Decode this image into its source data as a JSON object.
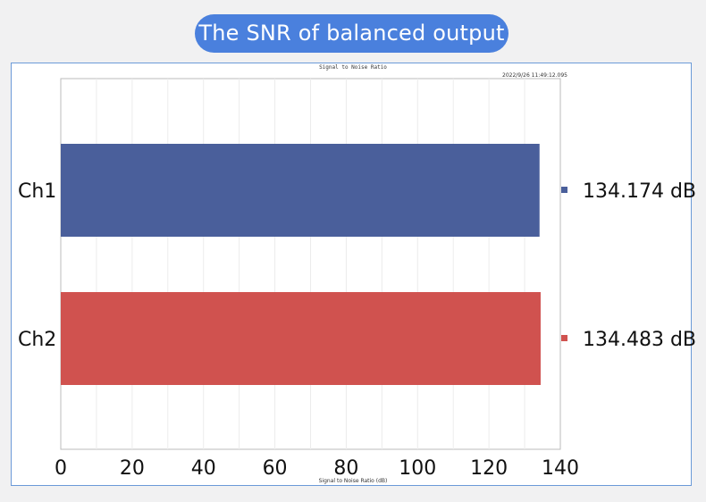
{
  "header": {
    "title": "The SNR of balanced output"
  },
  "chart_data": {
    "type": "bar",
    "orientation": "horizontal",
    "title": "Signal to Noise Ratio",
    "timestamp": "2022/9/26 11:49:12.095",
    "xlabel": "Signal to Noise Ratio (dB)",
    "ylabel": "",
    "xlim": [
      0,
      140
    ],
    "x_ticks": [
      "0",
      "20",
      "40",
      "60",
      "80",
      "100",
      "120",
      "140"
    ],
    "categories": [
      "Ch1",
      "Ch2"
    ],
    "values": [
      134.174,
      134.483
    ],
    "value_labels": [
      "134.174 dB",
      "134.483 dB"
    ],
    "colors": [
      "#4a5f9b",
      "#d0524f"
    ],
    "grid": true,
    "legend": "right"
  },
  "colors": {
    "accent": "#4a80dd",
    "frame": "#6b9ad8"
  }
}
